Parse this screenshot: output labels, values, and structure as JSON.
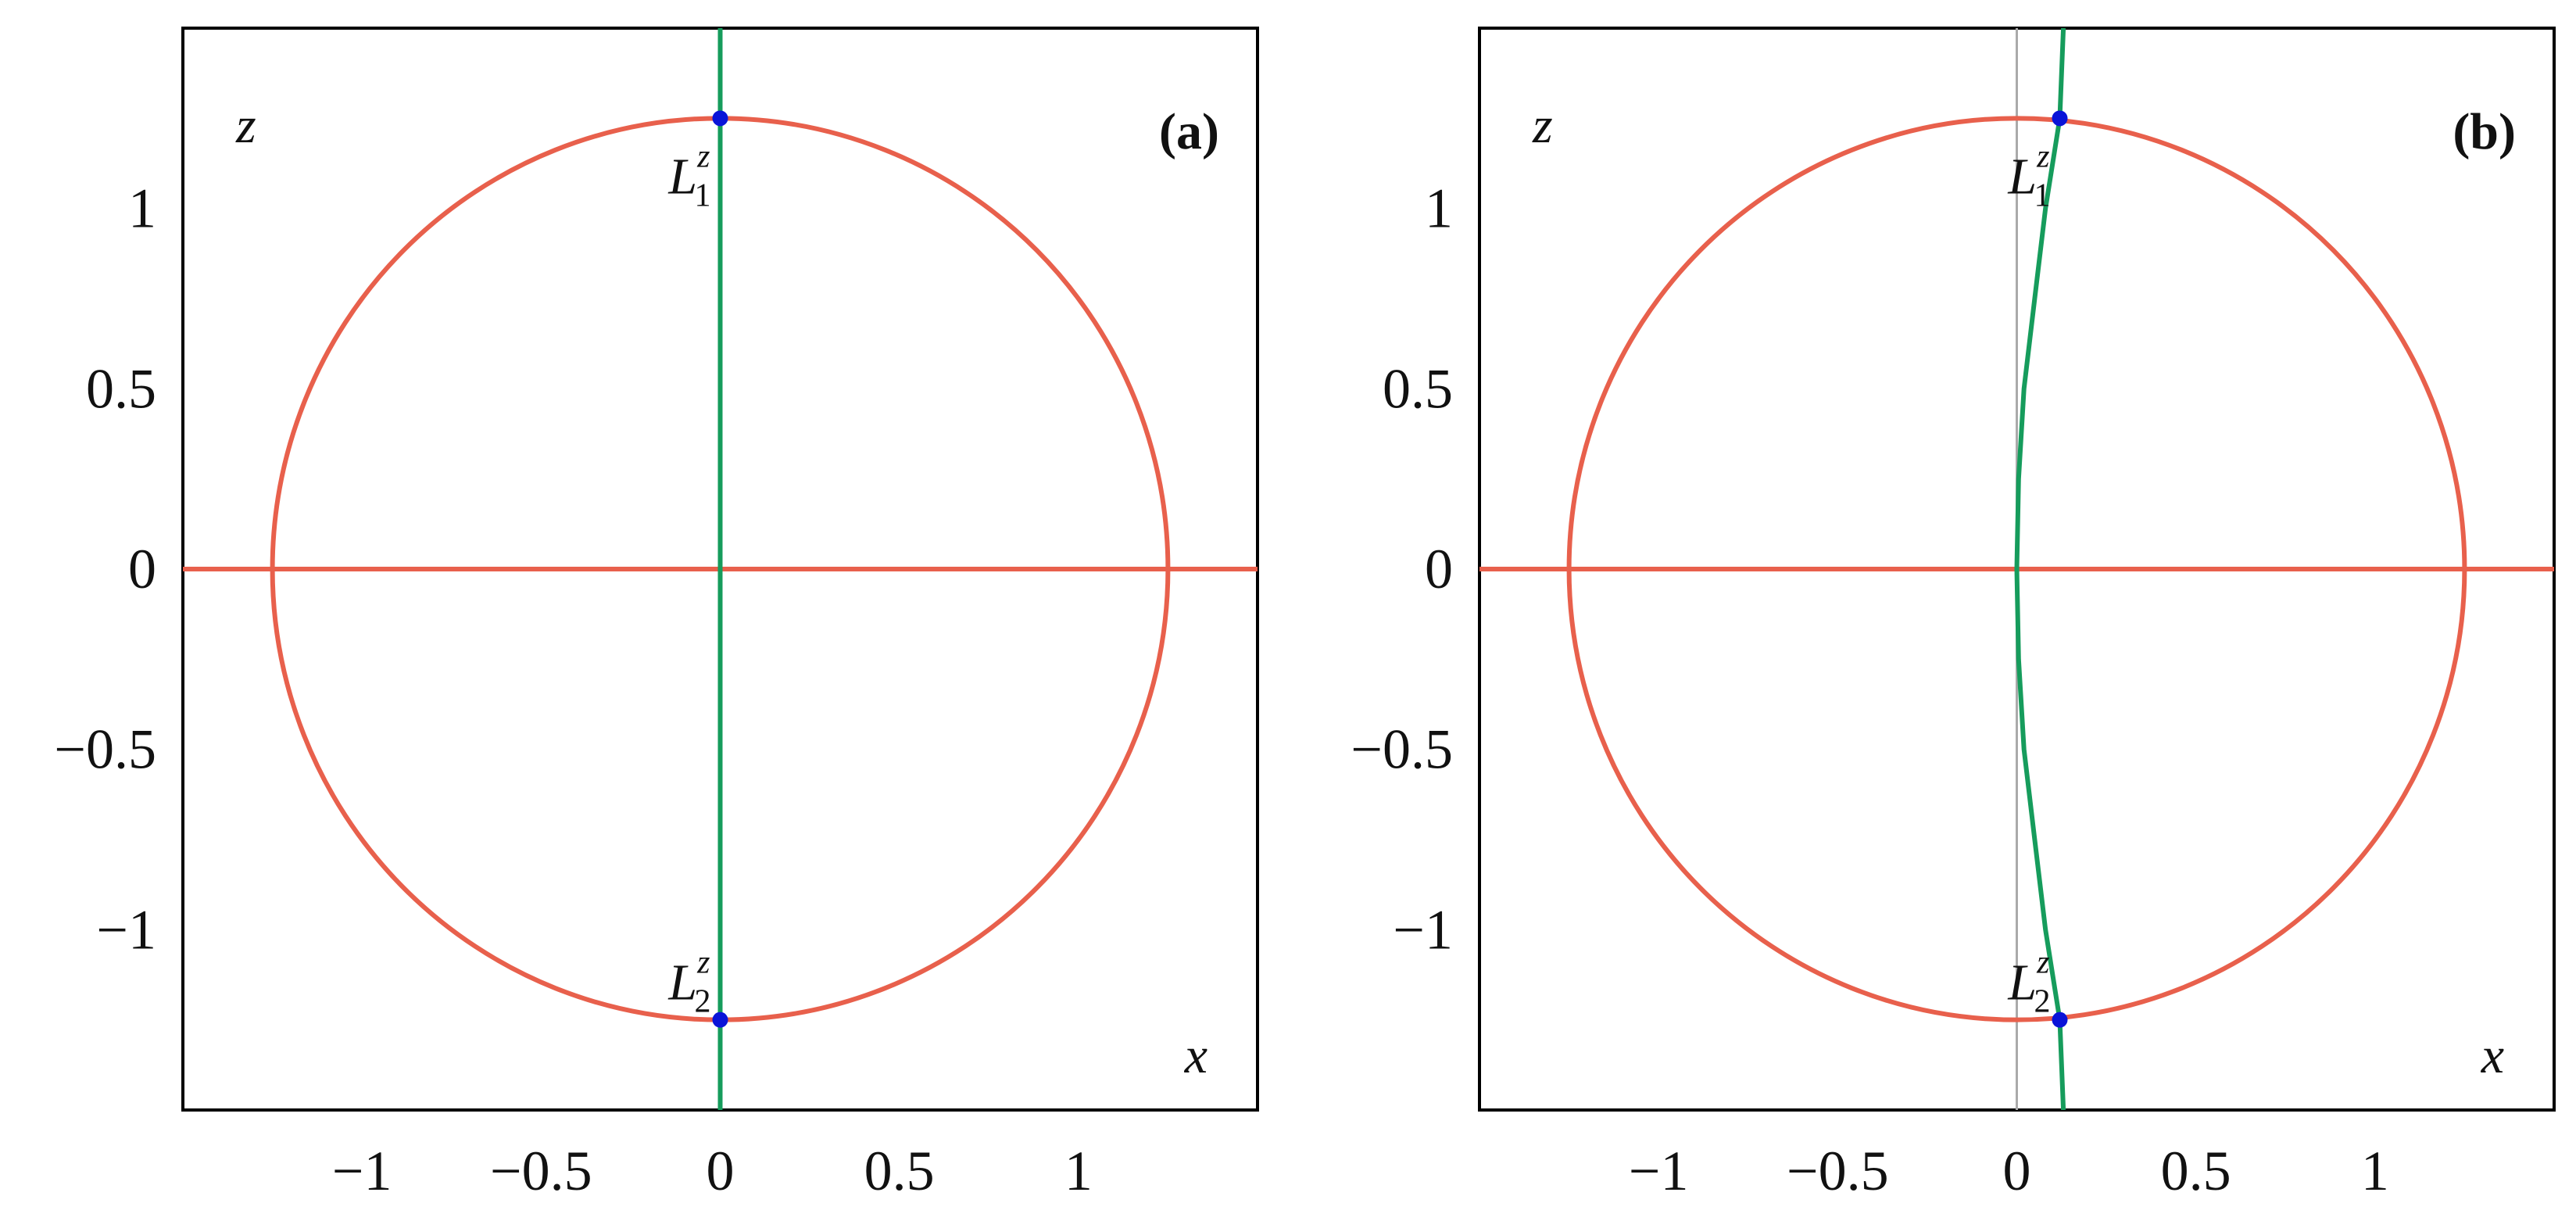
{
  "chart_data": [
    {
      "type": "line",
      "panel_label": "(a)",
      "xlabel": "x",
      "ylabel": "z",
      "xlim": [
        -1.5,
        1.5
      ],
      "ylim": [
        -1.5,
        1.5
      ],
      "xticks": [
        {
          "value": -1,
          "label": "−1"
        },
        {
          "value": -0.5,
          "label": "−0.5"
        },
        {
          "value": 0,
          "label": "0"
        },
        {
          "value": 0.5,
          "label": "0.5"
        },
        {
          "value": 1,
          "label": "1"
        }
      ],
      "yticks": [
        {
          "value": -1,
          "label": "−1"
        },
        {
          "value": -0.5,
          "label": "−0.5"
        },
        {
          "value": 0,
          "label": "0"
        },
        {
          "value": 0.5,
          "label": "0.5"
        },
        {
          "value": 1,
          "label": "1"
        }
      ],
      "grid": false,
      "series": [
        {
          "kind": "circle",
          "color": "#e8604c",
          "center": [
            0,
            0
          ],
          "radius": 1.25
        },
        {
          "kind": "line",
          "color": "#e8604c",
          "x": [
            -1.5,
            1.5
          ],
          "y": [
            0,
            0
          ]
        },
        {
          "kind": "line",
          "color": "#169c5c",
          "x": [
            0,
            0
          ],
          "y": [
            -1.5,
            1.5
          ]
        }
      ],
      "points": [
        {
          "symbol": "L",
          "sup": "z",
          "sub": "1",
          "x": 0,
          "y": 1.25,
          "color": "#0a14d8"
        },
        {
          "symbol": "L",
          "sup": "z",
          "sub": "2",
          "x": 0,
          "y": -1.25,
          "color": "#0a14d8"
        }
      ]
    },
    {
      "type": "line",
      "panel_label": "(b)",
      "xlabel": "x",
      "ylabel": "z",
      "xlim": [
        -1.5,
        1.5
      ],
      "ylim": [
        -1.5,
        1.5
      ],
      "xticks": [
        {
          "value": -1,
          "label": "−1"
        },
        {
          "value": -0.5,
          "label": "−0.5"
        },
        {
          "value": 0,
          "label": "0"
        },
        {
          "value": 0.5,
          "label": "0.5"
        },
        {
          "value": 1,
          "label": "1"
        }
      ],
      "yticks": [
        {
          "value": -1,
          "label": "−1"
        },
        {
          "value": -0.5,
          "label": "−0.5"
        },
        {
          "value": 0,
          "label": "0"
        },
        {
          "value": 0.5,
          "label": "0.5"
        },
        {
          "value": 1,
          "label": "1"
        }
      ],
      "grid": false,
      "series": [
        {
          "kind": "line",
          "color": "#aaaaaa",
          "x": [
            0,
            0
          ],
          "y": [
            -1.5,
            1.5
          ]
        },
        {
          "kind": "circle",
          "color": "#e8604c",
          "center": [
            0,
            0
          ],
          "radius": 1.25
        },
        {
          "kind": "line",
          "color": "#e8604c",
          "x": [
            -1.5,
            1.5
          ],
          "y": [
            0,
            0
          ]
        },
        {
          "kind": "curve",
          "color": "#169c5c",
          "x": [
            0.13,
            0.12,
            0.08,
            0.05,
            0.02,
            0.005,
            0,
            0.005,
            0.02,
            0.05,
            0.08,
            0.12,
            0.13
          ],
          "y": [
            -1.5,
            -1.25,
            -1.0,
            -0.75,
            -0.5,
            -0.25,
            0,
            0.25,
            0.5,
            0.75,
            1.0,
            1.25,
            1.5
          ]
        }
      ],
      "points": [
        {
          "symbol": "L",
          "sup": "z",
          "sub": "1",
          "x": 0.12,
          "y": 1.25,
          "color": "#0a14d8"
        },
        {
          "symbol": "L",
          "sup": "z",
          "sub": "2",
          "x": 0.12,
          "y": -1.25,
          "color": "#0a14d8"
        }
      ]
    }
  ]
}
